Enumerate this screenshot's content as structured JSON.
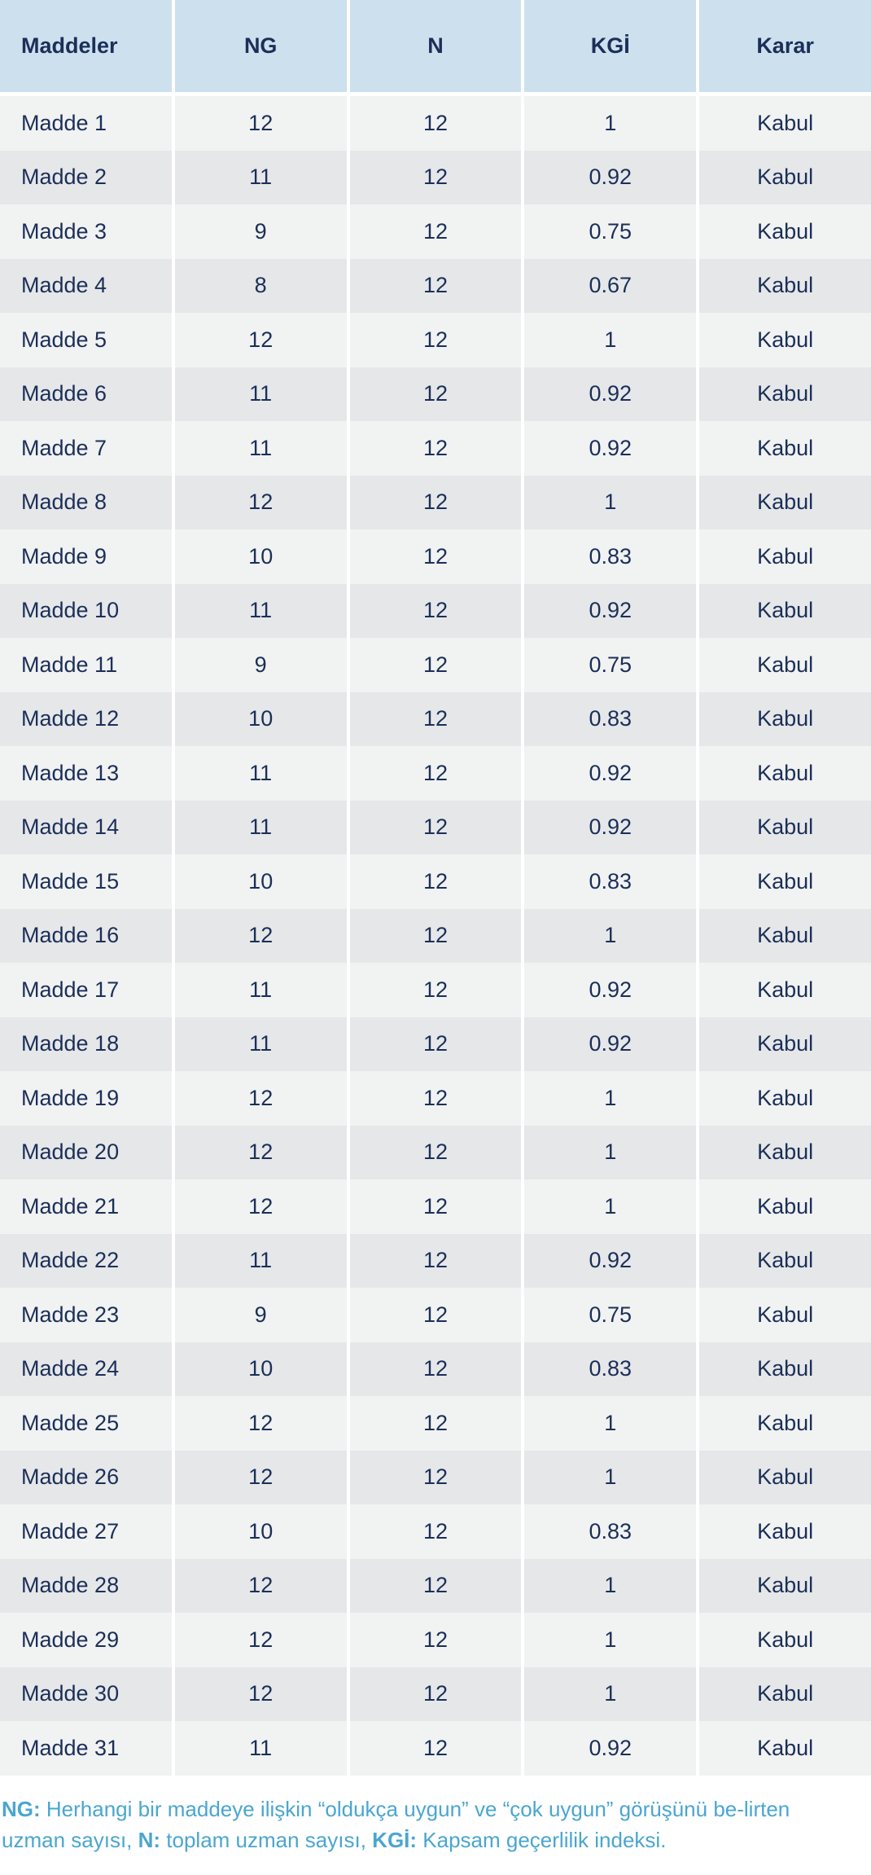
{
  "table": {
    "headers": [
      "Maddeler",
      "NG",
      "N",
      "KGİ",
      "Karar"
    ],
    "rows": [
      [
        "Madde 1",
        "12",
        "12",
        "1",
        "Kabul"
      ],
      [
        "Madde 2",
        "11",
        "12",
        "0.92",
        "Kabul"
      ],
      [
        "Madde 3",
        "9",
        "12",
        "0.75",
        "Kabul"
      ],
      [
        "Madde 4",
        "8",
        "12",
        "0.67",
        "Kabul"
      ],
      [
        "Madde 5",
        "12",
        "12",
        "1",
        "Kabul"
      ],
      [
        "Madde 6",
        "11",
        "12",
        "0.92",
        "Kabul"
      ],
      [
        "Madde 7",
        "11",
        "12",
        "0.92",
        "Kabul"
      ],
      [
        "Madde 8",
        "12",
        "12",
        "1",
        "Kabul"
      ],
      [
        "Madde 9",
        "10",
        "12",
        "0.83",
        "Kabul"
      ],
      [
        "Madde 10",
        "11",
        "12",
        "0.92",
        "Kabul"
      ],
      [
        "Madde 11",
        "9",
        "12",
        "0.75",
        "Kabul"
      ],
      [
        "Madde 12",
        "10",
        "12",
        "0.83",
        "Kabul"
      ],
      [
        "Madde 13",
        "11",
        "12",
        "0.92",
        "Kabul"
      ],
      [
        "Madde 14",
        "11",
        "12",
        "0.92",
        "Kabul"
      ],
      [
        "Madde 15",
        "10",
        "12",
        "0.83",
        "Kabul"
      ],
      [
        "Madde 16",
        "12",
        "12",
        "1",
        "Kabul"
      ],
      [
        "Madde 17",
        "11",
        "12",
        "0.92",
        "Kabul"
      ],
      [
        "Madde 18",
        "11",
        "12",
        "0.92",
        "Kabul"
      ],
      [
        "Madde 19",
        "12",
        "12",
        "1",
        "Kabul"
      ],
      [
        "Madde 20",
        "12",
        "12",
        "1",
        "Kabul"
      ],
      [
        "Madde 21",
        "12",
        "12",
        "1",
        "Kabul"
      ],
      [
        "Madde 22",
        "11",
        "12",
        "0.92",
        "Kabul"
      ],
      [
        "Madde 23",
        "9",
        "12",
        "0.75",
        "Kabul"
      ],
      [
        "Madde 24",
        "10",
        "12",
        "0.83",
        "Kabul"
      ],
      [
        "Madde 25",
        "12",
        "12",
        "1",
        "Kabul"
      ],
      [
        "Madde 26",
        "12",
        "12",
        "1",
        "Kabul"
      ],
      [
        "Madde 27",
        "10",
        "12",
        "0.83",
        "Kabul"
      ],
      [
        "Madde 28",
        "12",
        "12",
        "1",
        "Kabul"
      ],
      [
        "Madde 29",
        "12",
        "12",
        "1",
        "Kabul"
      ],
      [
        "Madde 30",
        "12",
        "12",
        "1",
        "Kabul"
      ],
      [
        "Madde 31",
        "11",
        "12",
        "0.92",
        "Kabul"
      ]
    ]
  },
  "note": {
    "ng_label": "NG:",
    "ng_text": " Herhangi bir maddeye ilişkin “oldukça uygun” ve “çok uygun” görüşünü be-lirten uzman sayısı, ",
    "n_label": "N:",
    "n_text": " toplam uzman sayısı, ",
    "kgi_label": "KGİ:",
    "kgi_text": " Kapsam geçerlilik indeksi."
  },
  "colors": {
    "header_bg": "#cde0ee",
    "row_odd": "#f1f2f2",
    "row_even": "#e6e7e9",
    "text": "#1b2f58",
    "note": "#4aa6d0"
  }
}
